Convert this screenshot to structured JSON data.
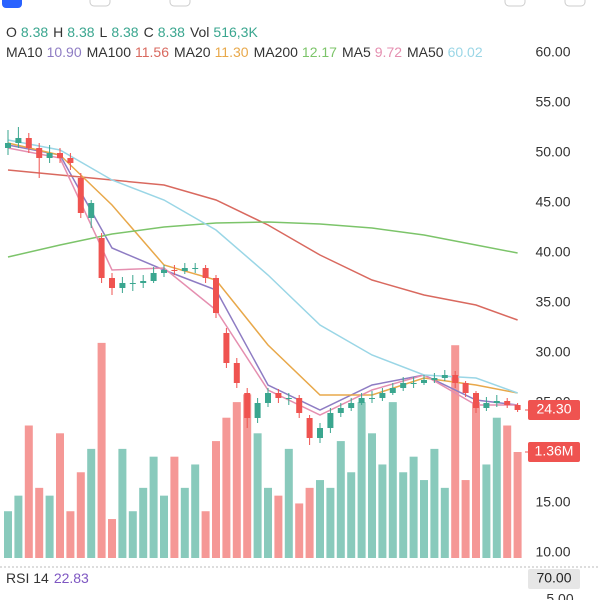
{
  "chart_data": {
    "type": "candlestick",
    "ohlc_header": [
      {
        "key": "O",
        "value": "8.38"
      },
      {
        "key": "H",
        "value": "8.38"
      },
      {
        "key": "L",
        "value": "8.38"
      },
      {
        "key": "C",
        "value": "8.38"
      },
      {
        "key": "Vol",
        "value": "516,3K"
      }
    ],
    "ylim": [
      8.8,
      60.8
    ],
    "yticks": [
      {
        "value": 10,
        "label": "10.00"
      },
      {
        "value": 15,
        "label": "15.00"
      },
      {
        "value": 20,
        "label": "20.00"
      },
      {
        "value": 25,
        "label": "25.00"
      },
      {
        "value": 30,
        "label": "30.00"
      },
      {
        "value": 35,
        "label": "35.00"
      },
      {
        "value": 40,
        "label": "40.00"
      },
      {
        "value": 45,
        "label": "45.00"
      },
      {
        "value": 50,
        "label": "50.00"
      },
      {
        "value": 55,
        "label": "55.00"
      },
      {
        "value": 60,
        "label": "60.00"
      }
    ],
    "up_color": "#3aa68f",
    "down_color": "#ef5350",
    "open": [
      50.5,
      51,
      51.5,
      50.5,
      49.5,
      50,
      49.5,
      47.5,
      43.5,
      41.5,
      37.5,
      36.5,
      37,
      37,
      37.2,
      38,
      38.3,
      38.2,
      38.5,
      38.5,
      37.5,
      32,
      29,
      26,
      23.5,
      25,
      26,
      25.5,
      25.5,
      23.5,
      21.5,
      22.5,
      24,
      24.5,
      25,
      25.5,
      25.5,
      26,
      26.5,
      27,
      27,
      27.3,
      27.5,
      27.8,
      27,
      26,
      24.5,
      25,
      25.2,
      24.8
    ],
    "high": [
      52.3,
      52.6,
      52,
      51,
      50.8,
      50.5,
      50,
      48,
      45.3,
      42,
      38,
      37.6,
      37.8,
      37.8,
      38.6,
      38.8,
      38.8,
      39,
      39,
      38.8,
      37.8,
      32.5,
      29.5,
      26.5,
      25.5,
      26.5,
      26.4,
      26,
      25.8,
      23.8,
      23,
      24.5,
      25,
      25.5,
      26,
      26.2,
      26.5,
      27,
      27.6,
      27.6,
      27.8,
      28,
      28.3,
      28.2,
      27.2,
      26.2,
      25.6,
      25.8,
      25.5,
      25
    ],
    "low": [
      49.8,
      50.5,
      50,
      47.5,
      49,
      49,
      48.3,
      43.5,
      42.5,
      37,
      35.8,
      36,
      36.2,
      36.5,
      37,
      37.6,
      37.8,
      37.9,
      38,
      37,
      33.5,
      28.5,
      26.5,
      22.5,
      23,
      24.6,
      25,
      24.8,
      23.5,
      20.8,
      21,
      22,
      23.6,
      24.2,
      24.8,
      25,
      25.2,
      25.8,
      26.2,
      26.5,
      26.8,
      27,
      27.2,
      26.5,
      25.6,
      24,
      24.2,
      24.6,
      24.5,
      24.1
    ],
    "close": [
      51,
      51.5,
      50.5,
      49.5,
      50,
      49.5,
      49,
      44,
      45,
      37.5,
      36.5,
      37,
      37,
      37.2,
      38,
      38.3,
      38.2,
      38.5,
      38.5,
      37.5,
      34,
      29,
      27,
      23.5,
      25,
      26,
      25.5,
      25.5,
      24,
      21.5,
      22.5,
      24,
      24.5,
      25,
      25.5,
      25.5,
      26,
      26.5,
      27,
      27,
      27.3,
      27.5,
      27.8,
      27,
      26,
      24.5,
      25,
      25.2,
      24.8,
      24.3
    ],
    "volume_lim": [
      0,
      6.8
    ],
    "volume": [
      0.6,
      0.8,
      1.7,
      0.9,
      0.8,
      1.6,
      0.6,
      1.1,
      1.4,
      2.76,
      0.5,
      1.4,
      0.6,
      0.9,
      1.3,
      0.8,
      1.3,
      0.9,
      1.2,
      0.6,
      1.5,
      1.8,
      2.0,
      2.1,
      1.6,
      0.9,
      0.8,
      1.4,
      0.7,
      0.9,
      1.0,
      0.9,
      1.5,
      1.1,
      2.0,
      1.6,
      1.2,
      2.0,
      1.1,
      1.3,
      1.0,
      1.4,
      0.9,
      2.73,
      1.0,
      2.0,
      1.2,
      1.8,
      1.7,
      1.36
    ],
    "ma_x": [
      0,
      5,
      10,
      15,
      20,
      25,
      30,
      35,
      40,
      45,
      49
    ],
    "series": [
      {
        "name": "MA10",
        "legend_value": "10.90",
        "color": "#8e7cc3",
        "values": [
          50.8,
          49.8,
          40.5,
          38.3,
          36.3,
          26.8,
          24.3,
          26.8,
          27.8,
          25.3,
          24.8
        ]
      },
      {
        "name": "MA100",
        "legend_value": "11.56",
        "color": "#d9695f",
        "values": [
          48.3,
          47.8,
          47.3,
          46.8,
          45.3,
          42.8,
          39.8,
          37.3,
          35.8,
          34.8,
          33.3
        ]
      },
      {
        "name": "MA20",
        "legend_value": "11.30",
        "color": "#e8a84a",
        "values": [
          51,
          49.8,
          44.8,
          38.8,
          37.3,
          30.8,
          25.8,
          25.8,
          27.5,
          26.8,
          26
        ]
      },
      {
        "name": "MA200",
        "legend_value": "12.17",
        "color": "#7cc46a",
        "values": [
          39.6,
          40.8,
          41.9,
          42.6,
          43,
          43.1,
          42.9,
          42.5,
          41.8,
          40.8,
          40
        ]
      },
      {
        "name": "MA5",
        "legend_value": "9.72",
        "color": "#e58fb0",
        "values": [
          50.5,
          49.5,
          38.3,
          38.5,
          34.3,
          26.3,
          23.8,
          26.3,
          27.8,
          24.8,
          24.8
        ]
      },
      {
        "name": "MA50",
        "legend_value": "60.02",
        "color": "#9ad6e6",
        "values": [
          51.3,
          50.3,
          47.3,
          45.3,
          42.3,
          37.8,
          32.8,
          29.8,
          27.8,
          27.5,
          26
        ]
      }
    ],
    "price_tag": {
      "value": 24.3,
      "label": "24.30"
    },
    "volume_tag": {
      "value": 1.36,
      "label": "1.36M"
    },
    "rsi": {
      "label": "RSI 14",
      "value": "22.83",
      "tags": [
        "70.00",
        "5.00"
      ]
    }
  }
}
